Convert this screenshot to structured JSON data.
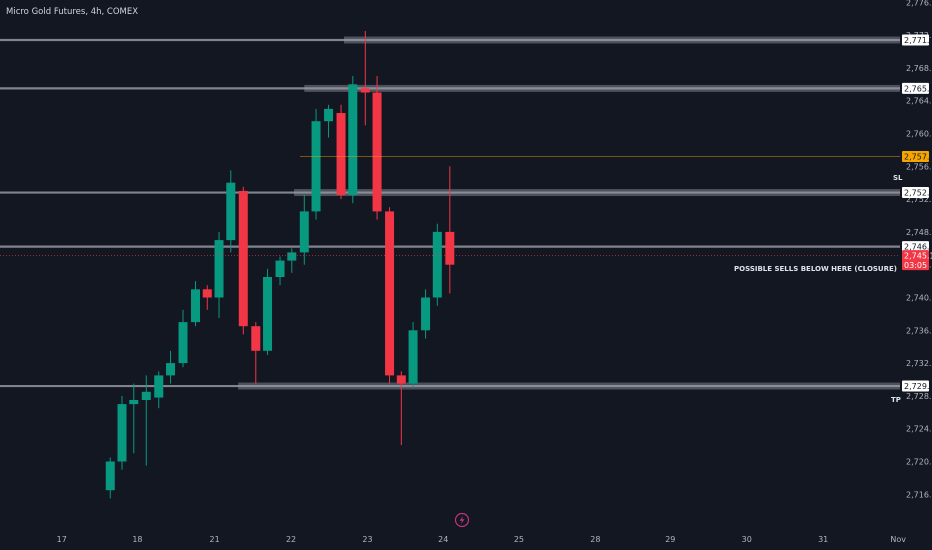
{
  "header": {
    "title": "Micro Gold Futures, 4h, COMEX"
  },
  "colors": {
    "background": "#131722",
    "up": "#089981",
    "down": "#f23645",
    "level": "#9598a1",
    "sl_line": "#f7a600",
    "current_line": "#f23645"
  },
  "chart_data": {
    "type": "candlestick",
    "title": "Micro Gold Futures, 4h, COMEX",
    "xlabel": "",
    "ylabel": "",
    "ylim": [
      2714.4,
      2778.5
    ],
    "x_ticks": [
      {
        "label": "17",
        "x": 4.2
      },
      {
        "label": "18",
        "x": 9.35
      },
      {
        "label": "21",
        "x": 14.6
      },
      {
        "label": "22",
        "x": 19.8
      },
      {
        "label": "23",
        "x": 25.0
      },
      {
        "label": "24",
        "x": 30.15
      },
      {
        "label": "25",
        "x": 35.3
      },
      {
        "label": "28",
        "x": 40.5
      },
      {
        "label": "29",
        "x": 45.6
      },
      {
        "label": "30",
        "x": 50.8
      },
      {
        "label": "31",
        "x": 56.0
      },
      {
        "label": "Nov",
        "x": 61.1
      }
    ],
    "y_ticks": [
      2716.0,
      2720.0,
      2724.0,
      2728.0,
      2732.0,
      2736.0,
      2740.0,
      2744.0,
      2748.0,
      2752.0,
      2756.0,
      2760.0,
      2764.0,
      2768.0,
      2772.0,
      2776.0
    ],
    "candles": [
      {
        "t": 7.5,
        "o": 2716.5,
        "h": 2720.5,
        "l": 2715.5,
        "c": 2720.0
      },
      {
        "t": 8.3,
        "o": 2720.0,
        "h": 2728.0,
        "l": 2719.0,
        "c": 2727.0
      },
      {
        "t": 9.1,
        "o": 2727.0,
        "h": 2729.5,
        "l": 2721.0,
        "c": 2727.5
      },
      {
        "t": 9.95,
        "o": 2727.5,
        "h": 2730.5,
        "l": 2719.5,
        "c": 2728.5
      },
      {
        "t": 10.8,
        "o": 2727.8,
        "h": 2731.0,
        "l": 2726.5,
        "c": 2730.5
      },
      {
        "t": 11.6,
        "o": 2730.5,
        "h": 2733.5,
        "l": 2729.5,
        "c": 2732.0
      },
      {
        "t": 12.45,
        "o": 2732.0,
        "h": 2738.5,
        "l": 2731.5,
        "c": 2737.0
      },
      {
        "t": 13.3,
        "o": 2737.0,
        "h": 2742.0,
        "l": 2736.5,
        "c": 2741.0
      },
      {
        "t": 14.1,
        "o": 2741.0,
        "h": 2741.5,
        "l": 2738.5,
        "c": 2740.0
      },
      {
        "t": 14.9,
        "o": 2740.0,
        "h": 2748.0,
        "l": 2737.5,
        "c": 2747.0
      },
      {
        "t": 15.7,
        "o": 2747.0,
        "h": 2755.5,
        "l": 2745.5,
        "c": 2754.0
      },
      {
        "t": 16.55,
        "o": 2753.0,
        "h": 2753.5,
        "l": 2735.5,
        "c": 2736.5
      },
      {
        "t": 17.4,
        "o": 2736.5,
        "h": 2737.0,
        "l": 2729.5,
        "c": 2733.5
      },
      {
        "t": 18.2,
        "o": 2733.5,
        "h": 2743.5,
        "l": 2733.0,
        "c": 2742.5
      },
      {
        "t": 19.05,
        "o": 2742.5,
        "h": 2745.0,
        "l": 2741.5,
        "c": 2744.5
      },
      {
        "t": 19.85,
        "o": 2744.5,
        "h": 2746.0,
        "l": 2743.0,
        "c": 2745.5
      },
      {
        "t": 20.7,
        "o": 2745.5,
        "h": 2752.5,
        "l": 2744.0,
        "c": 2750.5
      },
      {
        "t": 21.5,
        "o": 2750.5,
        "h": 2763.0,
        "l": 2749.5,
        "c": 2761.5
      },
      {
        "t": 22.35,
        "o": 2761.5,
        "h": 2763.5,
        "l": 2759.5,
        "c": 2763.0
      },
      {
        "t": 23.2,
        "o": 2762.5,
        "h": 2763.5,
        "l": 2752.0,
        "c": 2752.5
      },
      {
        "t": 24.0,
        "o": 2752.5,
        "h": 2767.0,
        "l": 2751.5,
        "c": 2766.0
      },
      {
        "t": 24.85,
        "o": 2765.5,
        "h": 2772.5,
        "l": 2761.0,
        "c": 2765.0
      },
      {
        "t": 25.65,
        "o": 2765.0,
        "h": 2767.0,
        "l": 2749.5,
        "c": 2750.5
      },
      {
        "t": 26.5,
        "o": 2750.5,
        "h": 2751.0,
        "l": 2729.5,
        "c": 2730.5
      },
      {
        "t": 27.3,
        "o": 2730.5,
        "h": 2731.0,
        "l": 2722.0,
        "c": 2729.5
      },
      {
        "t": 28.1,
        "o": 2729.5,
        "h": 2737.0,
        "l": 2729.0,
        "c": 2736.0
      },
      {
        "t": 28.95,
        "o": 2736.0,
        "h": 2741.0,
        "l": 2735.0,
        "c": 2740.0
      },
      {
        "t": 29.75,
        "o": 2740.0,
        "h": 2749.0,
        "l": 2739.0,
        "c": 2748.0
      },
      {
        "t": 30.6,
        "o": 2748.0,
        "h": 2756.0,
        "l": 2740.5,
        "c": 2744.0
      }
    ],
    "levels": [
      {
        "price": 2771.4,
        "label": "2,771.4",
        "start": 23.4
      },
      {
        "price": 2765.5,
        "label": "2,765.5",
        "start": 20.7
      },
      {
        "price": 2752.8,
        "label": "2,752.8",
        "start": 20.0
      },
      {
        "price": 2746.2,
        "label": "2,746.2",
        "start": 0.0
      },
      {
        "price": 2729.2,
        "label": "2,729.2",
        "start": 16.2
      }
    ],
    "sl": {
      "price": 2757.2,
      "label": "2,757.2",
      "tag": "SL"
    },
    "tp": {
      "tag": "TP"
    },
    "current": {
      "price": 2745.1,
      "label": "2,745.1",
      "countdown": "03:05"
    },
    "annotation": "POSSIBLE SELLS BELOW HERE (CLOSURE)"
  }
}
